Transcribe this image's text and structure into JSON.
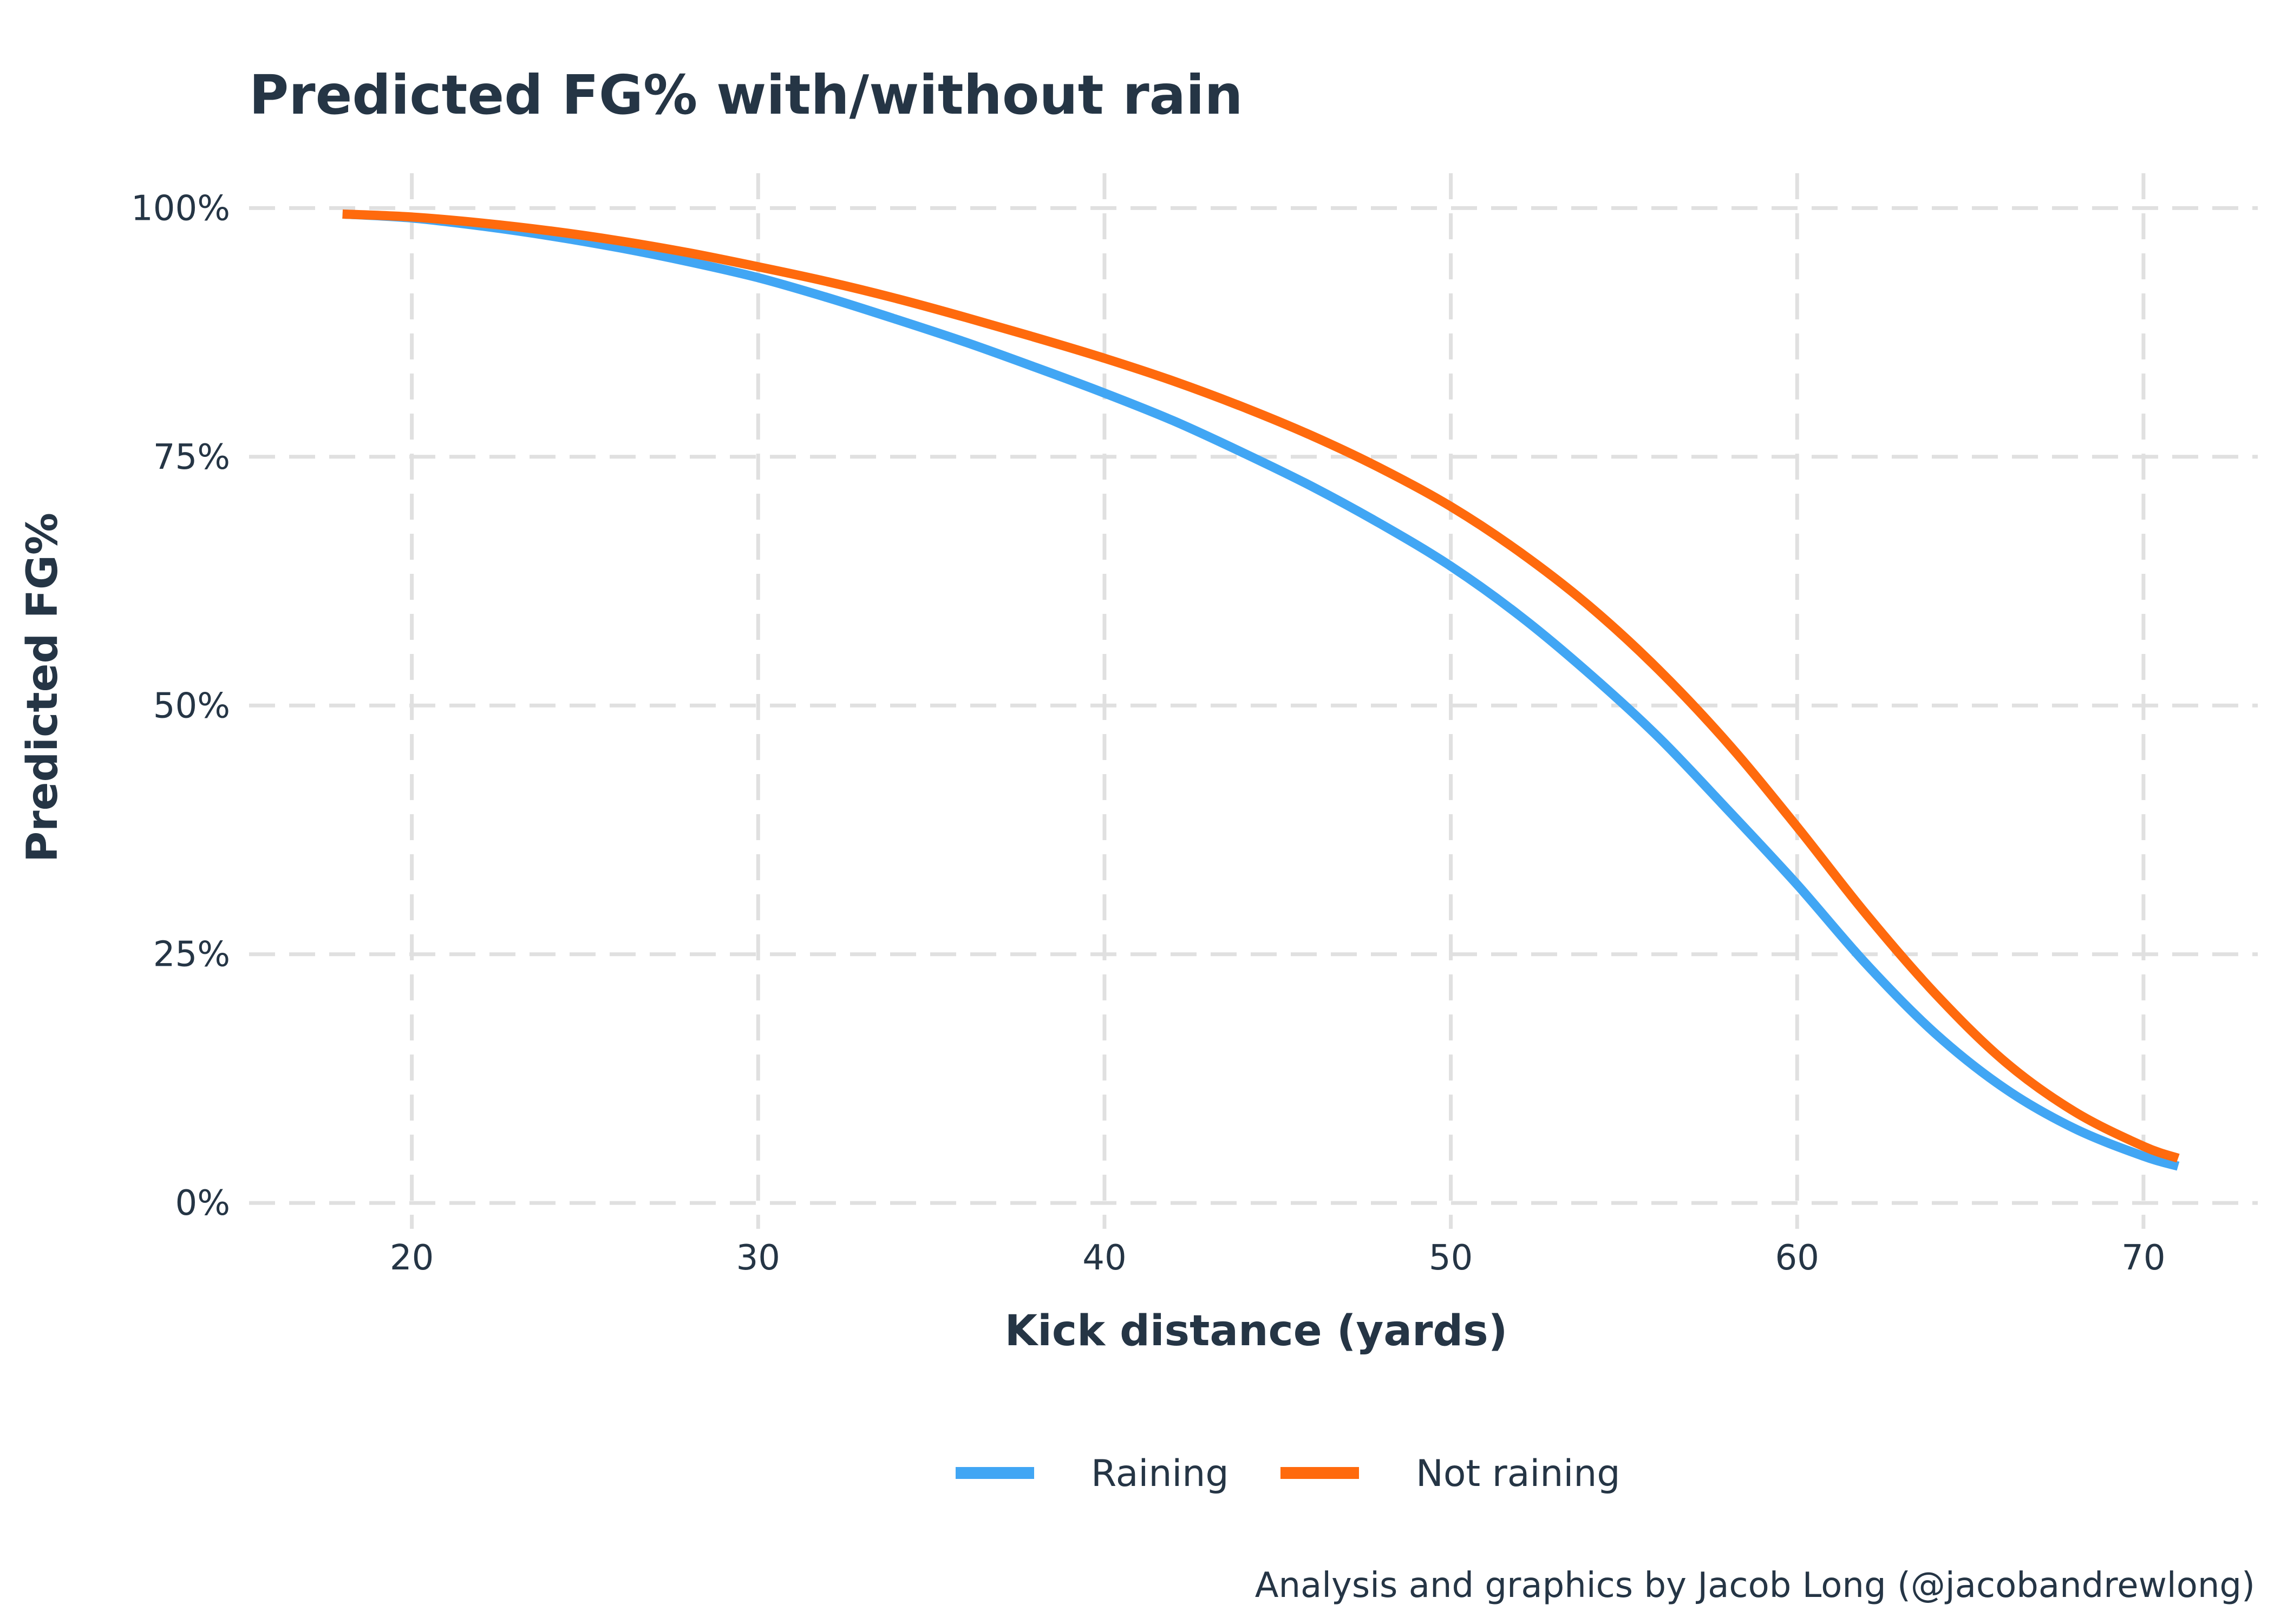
{
  "chart_data": {
    "type": "line",
    "title": "Predicted FG% with/without rain",
    "xlabel": "Kick distance (yards)",
    "ylabel": "Predicted FG%",
    "xlim": [
      15.3,
      73.3
    ],
    "ylim": [
      -0.026,
      1.035
    ],
    "x_ticks": [
      20,
      30,
      40,
      50,
      60,
      70
    ],
    "x_tick_labels": [
      "20",
      "30",
      "40",
      "50",
      "60",
      "70"
    ],
    "y_ticks": [
      0,
      0.25,
      0.5,
      0.75,
      1.0
    ],
    "y_tick_labels": [
      "0%",
      "25%",
      "50%",
      "75%",
      "100%"
    ],
    "grid": true,
    "legend_position": "bottom",
    "caption": "Analysis and graphics by Jacob Long (@jacobandrewlong)",
    "x": [
      18,
      20,
      22,
      24,
      26,
      28,
      30,
      32,
      34,
      36,
      38,
      40,
      42,
      44,
      46,
      48,
      50,
      52,
      54,
      56,
      58,
      60,
      62,
      64,
      66,
      68,
      70,
      71
    ],
    "series": [
      {
        "name": "Raining",
        "color": "#41a6f4",
        "values": [
          0.994,
          0.99,
          0.982,
          0.972,
          0.96,
          0.946,
          0.93,
          0.91,
          0.888,
          0.865,
          0.84,
          0.814,
          0.786,
          0.754,
          0.72,
          0.682,
          0.64,
          0.59,
          0.532,
          0.468,
          0.395,
          0.32,
          0.24,
          0.17,
          0.115,
          0.075,
          0.047,
          0.037
        ]
      },
      {
        "name": "Not raining",
        "color": "#ff6a0d",
        "values": [
          0.994,
          0.991,
          0.985,
          0.977,
          0.967,
          0.955,
          0.941,
          0.926,
          0.909,
          0.89,
          0.87,
          0.849,
          0.826,
          0.8,
          0.771,
          0.738,
          0.7,
          0.654,
          0.6,
          0.536,
          0.462,
          0.378,
          0.29,
          0.21,
          0.142,
          0.092,
          0.057,
          0.045
        ]
      }
    ]
  }
}
